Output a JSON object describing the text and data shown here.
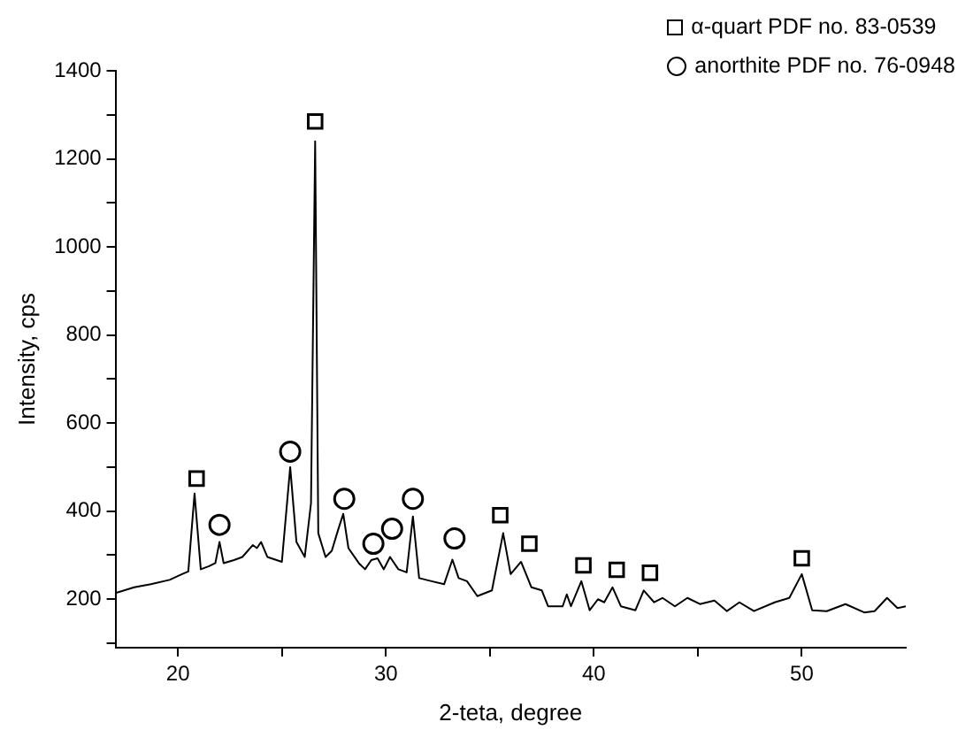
{
  "chart_data": {
    "type": "line",
    "xlabel": "2-teta, degree",
    "ylabel": "Intensity, cps",
    "xlim": [
      17,
      55
    ],
    "xticks": [
      20,
      {
        "value": 25,
        "label": null
      },
      30,
      {
        "value": 35,
        "label": null
      },
      40,
      {
        "value": 45,
        "label": null
      },
      50
    ],
    "ylim": [
      90,
      1400
    ],
    "yticks": [
      {
        "value": 100,
        "label": null
      },
      200,
      {
        "value": 300,
        "label": null
      },
      400,
      {
        "value": 500,
        "label": null
      },
      600,
      {
        "value": 700,
        "label": null
      },
      800,
      {
        "value": 900,
        "label": null
      },
      1000,
      {
        "value": 1100,
        "label": null
      },
      1200,
      {
        "value": 1300,
        "label": null
      },
      1400
    ],
    "grid": false,
    "legend": "top right",
    "series": [
      {
        "color": "#000000",
        "marker": "none",
        "x": [
          17.0,
          17.9,
          18.7,
          19.6,
          20.2,
          20.5,
          20.8,
          21.1,
          21.5,
          21.8,
          22.0,
          22.2,
          22.7,
          23.1,
          23.6,
          23.8,
          24.0,
          24.3,
          25.0,
          25.4,
          25.7,
          26.1,
          26.4,
          26.6,
          26.75,
          27.1,
          27.4,
          27.7,
          27.95,
          28.2,
          28.7,
          29.0,
          29.3,
          29.6,
          29.9,
          30.2,
          30.6,
          31.0,
          31.3,
          31.6,
          32.2,
          32.8,
          33.2,
          33.5,
          33.9,
          34.4,
          35.1,
          35.64,
          36.0,
          36.5,
          37.0,
          37.5,
          37.8,
          38.5,
          38.7,
          38.9,
          39.4,
          39.8,
          40.2,
          40.5,
          40.9,
          41.3,
          42.0,
          42.4,
          42.9,
          43.3,
          43.9,
          44.5,
          45.1,
          45.8,
          46.4,
          47.0,
          47.7,
          48.7,
          49.4,
          50.0,
          50.5,
          51.2,
          52.1,
          53.0,
          53.5,
          54.1,
          54.6,
          55.0
        ],
        "values": [
          214,
          227,
          234,
          244,
          257,
          263,
          440,
          268,
          275,
          282,
          330,
          282,
          289,
          296,
          323,
          316,
          330,
          296,
          285,
          500,
          330,
          296,
          418,
          1240,
          350,
          296,
          310,
          357,
          394,
          316,
          282,
          268,
          289,
          293,
          268,
          296,
          268,
          261,
          388,
          248,
          241,
          234,
          290,
          248,
          241,
          207,
          220,
          350,
          257,
          285,
          227,
          220,
          184,
          184,
          211,
          184,
          241,
          175,
          200,
          193,
          227,
          184,
          175,
          220,
          193,
          203,
          184,
          203,
          189,
          197,
          173,
          193,
          173,
          193,
          203,
          257,
          175,
          173,
          189,
          170,
          173,
          203,
          180,
          184
        ]
      },
      {
        "type": "scatter",
        "name": "α-quart PDF no. 83-0539",
        "color": "#000000",
        "marker": "square",
        "x": [
          20.9,
          26.6,
          35.5,
          36.9,
          39.5,
          41.1,
          42.7,
          50.0
        ],
        "values": [
          474,
          1285,
          391,
          326,
          277,
          267,
          260,
          293
        ]
      },
      {
        "type": "scatter",
        "name": "anorthite PDF no. 76-0948",
        "color": "#000000",
        "marker": "circle",
        "x": [
          22.0,
          25.4,
          28.0,
          29.4,
          30.3,
          31.3,
          33.3
        ],
        "values": [
          369,
          535,
          428,
          326,
          360,
          428,
          338
        ]
      }
    ]
  }
}
